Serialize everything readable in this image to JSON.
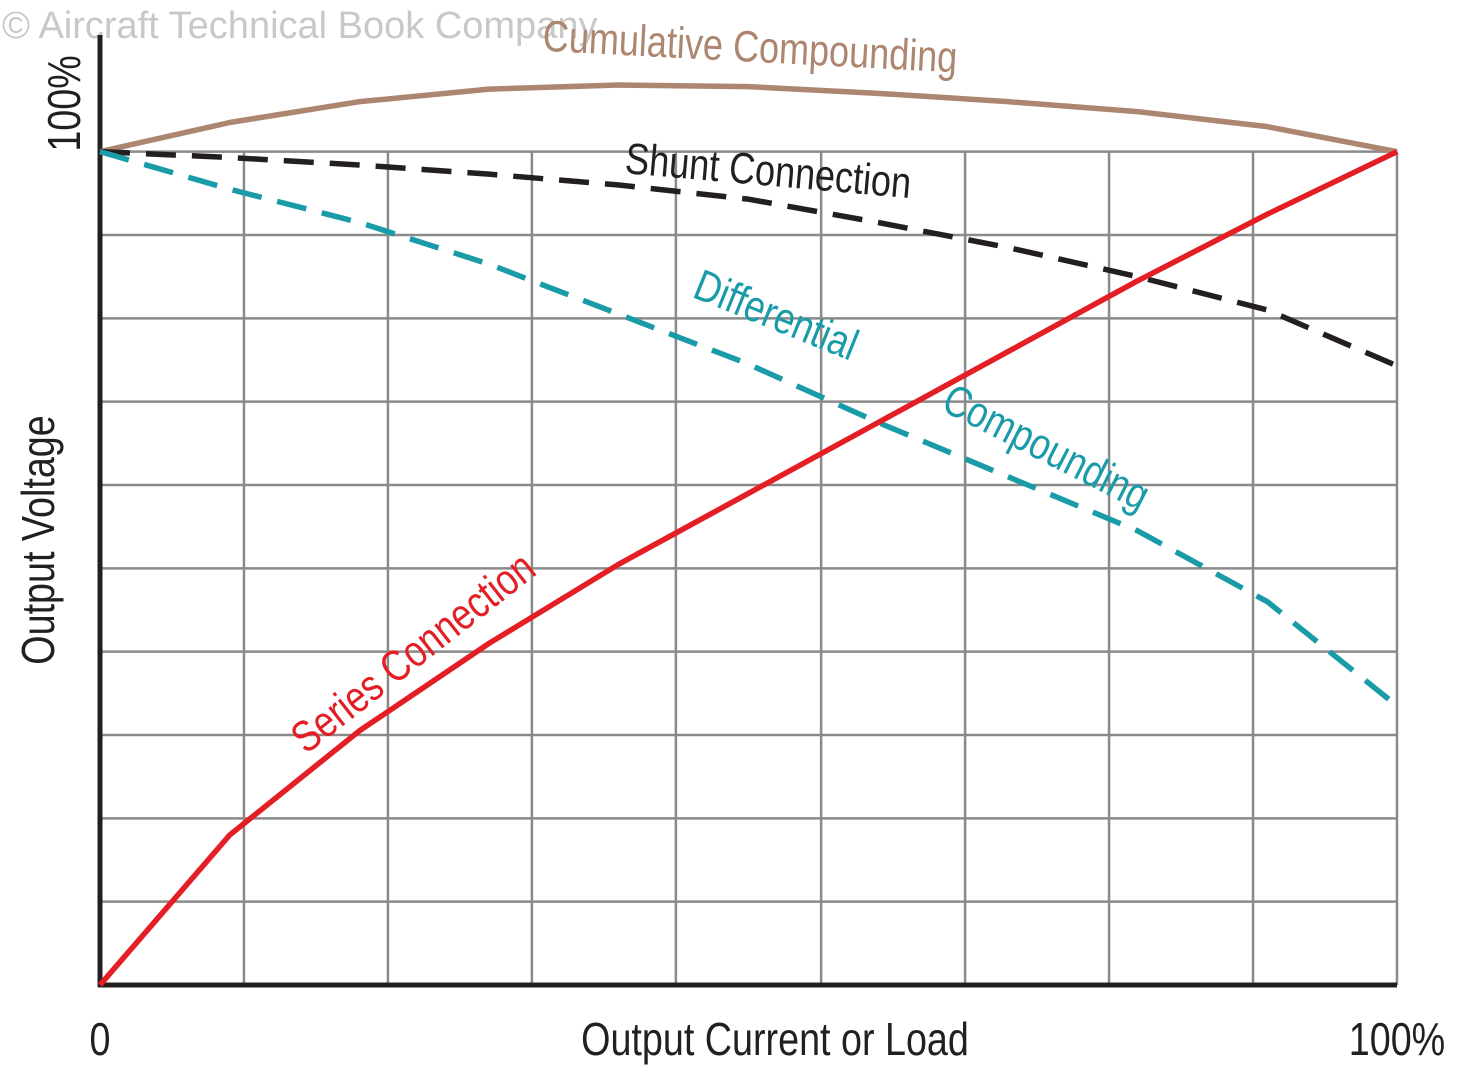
{
  "chart_data": {
    "type": "line",
    "watermark": "© Aircraft Technical Book Company",
    "x_label": "Output Current or Load",
    "y_label": "Output Voltage",
    "xlim": [
      0,
      100
    ],
    "ylim": [
      0,
      114
    ],
    "xticks": [
      0,
      {
        "value": 100,
        "label": "100%"
      }
    ],
    "yticks": [
      {
        "value": 100,
        "label": "100%"
      }
    ],
    "xgrid": [
      11.1,
      22.2,
      33.3,
      44.4,
      55.6,
      66.7,
      77.8,
      88.9,
      100
    ],
    "ygrid": [
      10,
      20,
      30,
      40,
      50,
      60,
      70,
      80,
      90,
      100
    ],
    "x": [
      0,
      10,
      20,
      30,
      40,
      50,
      60,
      70,
      80,
      90,
      100
    ],
    "series": [
      {
        "name": "Cumulative Compounding",
        "color": "#ac8670",
        "style": "solid",
        "values": [
          100,
          103.5,
          106,
          107.5,
          108,
          107.8,
          107,
          106,
          104.8,
          103,
          100
        ]
      },
      {
        "name": "Shunt Connection",
        "color": "#231f20",
        "style": "dashed",
        "values": [
          100,
          99.3,
          98.4,
          97.3,
          96,
          94.3,
          91.5,
          88.5,
          85,
          81,
          74.3
        ]
      },
      {
        "name": "Differential Compounding",
        "color": "#1a9ba8",
        "style": "dashed",
        "values": [
          100,
          95.5,
          91.5,
          86.5,
          80.5,
          74.5,
          67.5,
          61,
          54.5,
          46,
          33.5
        ]
      },
      {
        "name": "Series Connection",
        "color": "#e31e24",
        "style": "solid",
        "values": [
          0,
          18,
          30.5,
          41,
          50.5,
          59,
          67.5,
          76,
          84.5,
          92.5,
          100
        ]
      }
    ],
    "annotations": [
      "Cumulative Compounding",
      "Shunt Connection",
      "Differential",
      "Compounding",
      "Series Connection"
    ]
  }
}
